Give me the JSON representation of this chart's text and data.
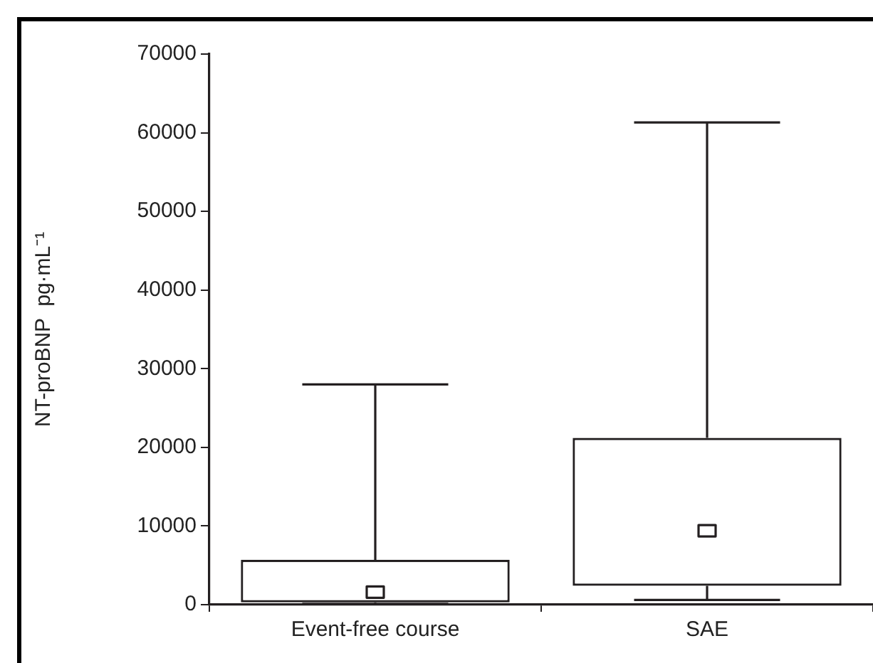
{
  "chart_data": {
    "type": "box",
    "categories": [
      "Event-free course",
      "SAE"
    ],
    "boxes": [
      {
        "low": 100,
        "q1": 300,
        "median": 1600,
        "q3": 5700,
        "high": 28000
      },
      {
        "low": 600,
        "q1": 2400,
        "median": 9400,
        "q3": 21200,
        "high": 61300
      }
    ],
    "color": "#231f20",
    "ylabel": "NT-proBNP  pg·mL⁻¹",
    "ylim": [
      0,
      70000
    ],
    "yticks": [
      0,
      10000,
      20000,
      30000,
      40000,
      50000,
      60000,
      70000
    ],
    "grid": false,
    "legend": false
  }
}
